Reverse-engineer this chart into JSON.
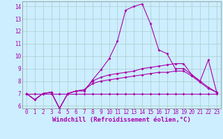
{
  "x": [
    0,
    1,
    2,
    3,
    4,
    5,
    6,
    7,
    8,
    9,
    10,
    11,
    12,
    13,
    14,
    15,
    16,
    17,
    18,
    19,
    20,
    21,
    22,
    23
  ],
  "line1": [
    7.0,
    6.5,
    7.0,
    7.1,
    5.8,
    7.0,
    7.2,
    7.2,
    8.1,
    8.9,
    9.8,
    11.2,
    13.7,
    14.0,
    14.2,
    12.6,
    10.5,
    10.2,
    9.0,
    9.0,
    8.5,
    8.0,
    9.7,
    7.1
  ],
  "line2": [
    7.0,
    6.5,
    7.0,
    7.1,
    5.8,
    7.0,
    7.2,
    7.3,
    8.0,
    8.3,
    8.5,
    8.6,
    8.7,
    8.8,
    9.0,
    9.1,
    9.2,
    9.3,
    9.4,
    9.4,
    8.5,
    8.0,
    7.5,
    7.1
  ],
  "line3": [
    7.0,
    6.5,
    7.0,
    7.1,
    5.8,
    7.0,
    7.2,
    7.3,
    7.8,
    8.0,
    8.1,
    8.2,
    8.3,
    8.4,
    8.5,
    8.6,
    8.7,
    8.7,
    8.8,
    8.8,
    8.4,
    7.9,
    7.4,
    7.1
  ],
  "line4": [
    7.0,
    7.0,
    7.0,
    7.0,
    7.0,
    7.0,
    7.0,
    7.0,
    7.0,
    7.0,
    7.0,
    7.0,
    7.0,
    7.0,
    7.0,
    7.0,
    7.0,
    7.0,
    7.0,
    7.0,
    7.0,
    7.0,
    7.0,
    7.0
  ],
  "line_color": "#aa00aa",
  "bg_color": "#cceeff",
  "grid_color": "#aacccc",
  "xlabel": "Windchill (Refroidissement éolien,°C)",
  "xlim_min": -0.5,
  "xlim_max": 23.5,
  "ylim_min": 5.8,
  "ylim_max": 14.4,
  "yticks": [
    6,
    7,
    8,
    9,
    10,
    11,
    12,
    13,
    14
  ],
  "xticks": [
    0,
    1,
    2,
    3,
    4,
    5,
    6,
    7,
    8,
    9,
    10,
    11,
    12,
    13,
    14,
    15,
    16,
    17,
    18,
    19,
    20,
    21,
    22,
    23
  ],
  "markersize": 2.0,
  "linewidth": 0.8,
  "xlabel_fontsize": 6.5,
  "tick_fontsize": 5.5
}
